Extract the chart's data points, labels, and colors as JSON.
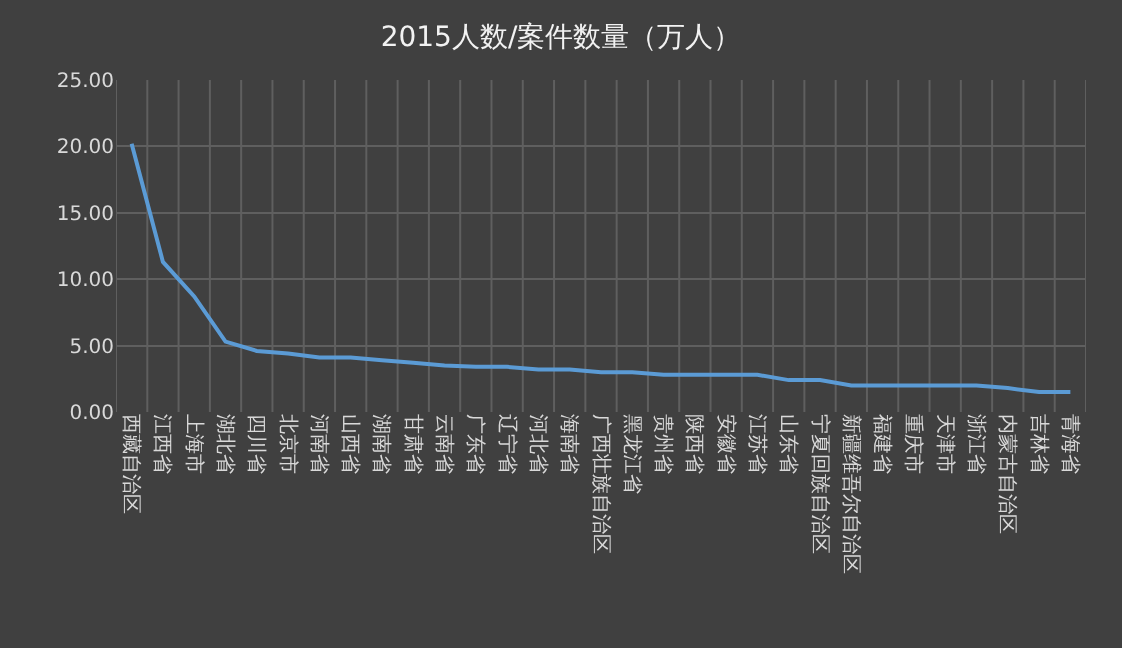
{
  "chart_data": {
    "type": "line",
    "title": "2015人数/案件数量（万人）",
    "categories": [
      "西藏自治区",
      "江西省",
      "上海市",
      "湖北省",
      "四川省",
      "北京市",
      "河南省",
      "山西省",
      "湖南省",
      "甘肃省",
      "云南省",
      "广东省",
      "辽宁省",
      "河北省",
      "海南省",
      "广西壮族自治区",
      "黑龙江省",
      "贵州省",
      "陕西省",
      "安徽省",
      "江苏省",
      "山东省",
      "宁夏回族自治区",
      "新疆维吾尔自治区",
      "福建省",
      "重庆市",
      "天津市",
      "浙江省",
      "内蒙古自治区",
      "吉林省",
      "青海省"
    ],
    "series": [
      {
        "color": "#5b9bd5",
        "values": [
          20.2,
          11.3,
          8.7,
          5.3,
          4.6,
          4.4,
          4.1,
          4.1,
          3.9,
          3.7,
          3.5,
          3.4,
          3.4,
          3.2,
          3.2,
          3.0,
          3.0,
          2.8,
          2.8,
          2.8,
          2.8,
          2.4,
          2.4,
          2.0,
          2.0,
          2.0,
          2.0,
          2.0,
          1.8,
          1.5,
          1.5
        ]
      }
    ],
    "ylim": [
      0,
      25
    ],
    "yticks": [
      {
        "value": 0,
        "label": "0.00"
      },
      {
        "value": 5,
        "label": "5.00"
      },
      {
        "value": 10,
        "label": "10.00"
      },
      {
        "value": 15,
        "label": "15.00"
      },
      {
        "value": 20,
        "label": "20.00"
      },
      {
        "value": 25,
        "label": "25.00"
      }
    ],
    "grid": true,
    "legend": false,
    "marker": "none",
    "line_style": "solid"
  }
}
